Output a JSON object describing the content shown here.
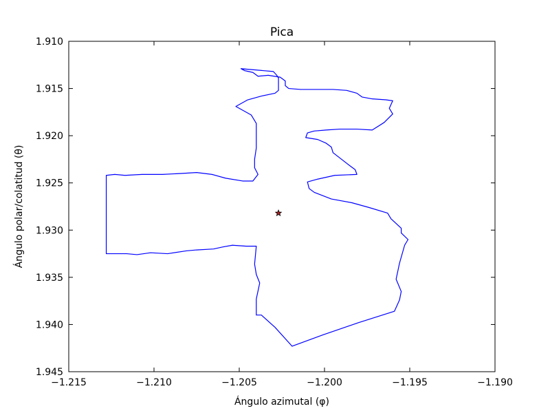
{
  "chart_data": {
    "type": "line",
    "title": "Pica",
    "xlabel": "Ángulo azimutal (φ)",
    "ylabel": "Ángulo polar/colatitud (θ)",
    "xlim": [
      -1.215,
      -1.19
    ],
    "ylim": [
      1.945,
      1.91
    ],
    "y_inverted": true,
    "grid": false,
    "x_ticks": [
      -1.215,
      -1.21,
      -1.205,
      -1.2,
      -1.195,
      -1.19
    ],
    "x_tick_labels": [
      "−1.215",
      "−1.210",
      "−1.205",
      "−1.200",
      "−1.195",
      "−1.190"
    ],
    "y_ticks": [
      1.91,
      1.915,
      1.92,
      1.925,
      1.93,
      1.935,
      1.94,
      1.945
    ],
    "y_tick_labels": [
      "1.910",
      "1.915",
      "1.920",
      "1.925",
      "1.930",
      "1.935",
      "1.940",
      "1.945"
    ],
    "colors": {
      "boundary": "#0000ff",
      "marker_fill": "#b22222",
      "marker_edge": "#000000"
    },
    "series": [
      {
        "type": "line",
        "closed": true,
        "points": [
          [
            -1.2049,
            1.9129
          ],
          [
            -1.2047,
            1.9131
          ],
          [
            -1.2042,
            1.9133
          ],
          [
            -1.2039,
            1.9137
          ],
          [
            -1.2033,
            1.9136
          ],
          [
            -1.2026,
            1.9138
          ],
          [
            -1.2023,
            1.9142
          ],
          [
            -1.2023,
            1.9147
          ],
          [
            -1.2021,
            1.915
          ],
          [
            -1.2014,
            1.9151
          ],
          [
            -1.2005,
            1.9151
          ],
          [
            -1.1995,
            1.9151
          ],
          [
            -1.1987,
            1.9152
          ],
          [
            -1.1981,
            1.9155
          ],
          [
            -1.1978,
            1.9159
          ],
          [
            -1.1972,
            1.9161
          ],
          [
            -1.1964,
            1.9162
          ],
          [
            -1.196,
            1.9163
          ],
          [
            -1.1962,
            1.9171
          ],
          [
            -1.196,
            1.9177
          ],
          [
            -1.1965,
            1.9186
          ],
          [
            -1.1972,
            1.9194
          ],
          [
            -1.1981,
            1.9193
          ],
          [
            -1.1991,
            1.9193
          ],
          [
            -1.1999,
            1.9194
          ],
          [
            -1.2006,
            1.9195
          ],
          [
            -1.201,
            1.9197
          ],
          [
            -1.2011,
            1.9202
          ],
          [
            -1.2004,
            1.9204
          ],
          [
            -1.1999,
            1.9208
          ],
          [
            -1.1996,
            1.9212
          ],
          [
            -1.1995,
            1.9218
          ],
          [
            -1.199,
            1.9225
          ],
          [
            -1.1985,
            1.9232
          ],
          [
            -1.1982,
            1.9236
          ],
          [
            -1.1981,
            1.9241
          ],
          [
            -1.1994,
            1.9242
          ],
          [
            -1.2004,
            1.9246
          ],
          [
            -1.201,
            1.9249
          ],
          [
            -1.2009,
            1.9256
          ],
          [
            -1.2006,
            1.926
          ],
          [
            -1.1996,
            1.9267
          ],
          [
            -1.1984,
            1.9271
          ],
          [
            -1.1974,
            1.9276
          ],
          [
            -1.1963,
            1.9282
          ],
          [
            -1.1961,
            1.9288
          ],
          [
            -1.1955,
            1.9298
          ],
          [
            -1.1955,
            1.9303
          ],
          [
            -1.1951,
            1.931
          ],
          [
            -1.1953,
            1.9316
          ],
          [
            -1.1956,
            1.9335
          ],
          [
            -1.1958,
            1.9352
          ],
          [
            -1.1955,
            1.9365
          ],
          [
            -1.1956,
            1.9374
          ],
          [
            -1.1959,
            1.9386
          ],
          [
            -1.198,
            1.9398
          ],
          [
            -1.2001,
            1.9411
          ],
          [
            -1.2019,
            1.9423
          ],
          [
            -1.2029,
            1.9403
          ],
          [
            -1.2037,
            1.939
          ],
          [
            -1.204,
            1.939
          ],
          [
            -1.204,
            1.9373
          ],
          [
            -1.2038,
            1.9356
          ],
          [
            -1.204,
            1.9347
          ],
          [
            -1.2041,
            1.9336
          ],
          [
            -1.204,
            1.9317
          ],
          [
            -1.2046,
            1.9317
          ],
          [
            -1.2054,
            1.9316
          ],
          [
            -1.206,
            1.9318
          ],
          [
            -1.2065,
            1.932
          ],
          [
            -1.2075,
            1.9321
          ],
          [
            -1.2081,
            1.9322
          ],
          [
            -1.2092,
            1.9325
          ],
          [
            -1.2102,
            1.9324
          ],
          [
            -1.211,
            1.9326
          ],
          [
            -1.2116,
            1.9325
          ],
          [
            -1.2128,
            1.9325
          ],
          [
            -1.2128,
            1.9256
          ],
          [
            -1.2128,
            1.9242
          ],
          [
            -1.2123,
            1.9241
          ],
          [
            -1.2117,
            1.9242
          ],
          [
            -1.2107,
            1.9241
          ],
          [
            -1.2095,
            1.9241
          ],
          [
            -1.2084,
            1.924
          ],
          [
            -1.2075,
            1.9239
          ],
          [
            -1.2066,
            1.9241
          ],
          [
            -1.2058,
            1.9245
          ],
          [
            -1.2048,
            1.9248
          ],
          [
            -1.2042,
            1.9248
          ],
          [
            -1.2039,
            1.9241
          ],
          [
            -1.2041,
            1.9234
          ],
          [
            -1.2041,
            1.9225
          ],
          [
            -1.204,
            1.9213
          ],
          [
            -1.204,
            1.92
          ],
          [
            -1.204,
            1.9187
          ],
          [
            -1.2043,
            1.9178
          ],
          [
            -1.205,
            1.9171
          ],
          [
            -1.2052,
            1.9169
          ],
          [
            -1.2045,
            1.9162
          ],
          [
            -1.2037,
            1.9158
          ],
          [
            -1.2029,
            1.9155
          ],
          [
            -1.2027,
            1.9152
          ],
          [
            -1.2027,
            1.9145
          ],
          [
            -1.2027,
            1.9139
          ],
          [
            -1.2028,
            1.9136
          ],
          [
            -1.203,
            1.9132
          ]
        ]
      }
    ],
    "marker": {
      "shape": "star",
      "x": -1.2027,
      "y": 1.9282
    }
  }
}
